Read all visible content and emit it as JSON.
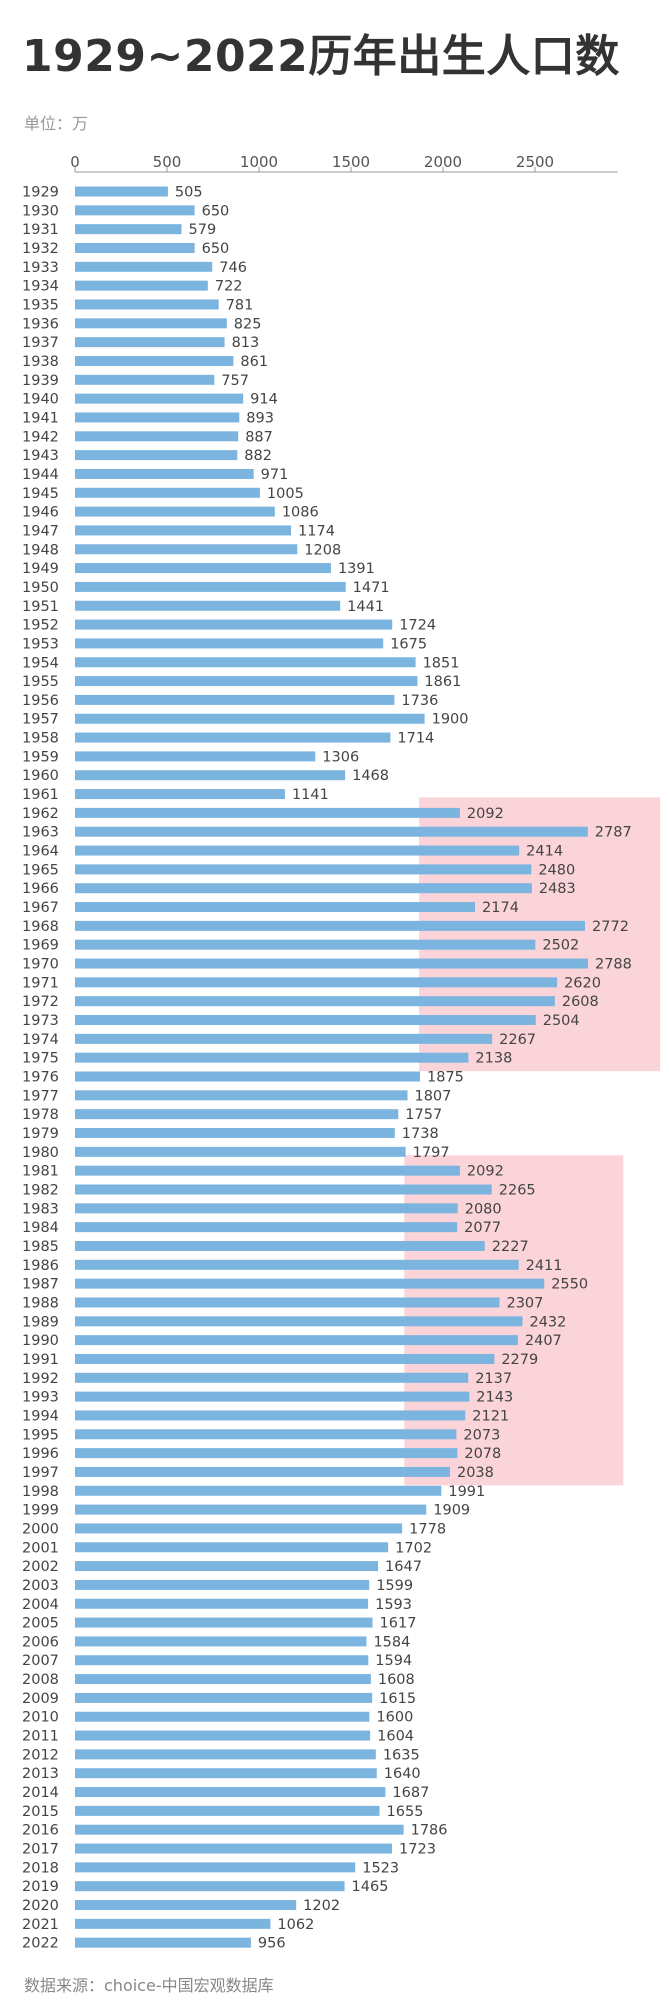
{
  "title": "1929~2022历年出生人口数",
  "unit_label": "单位：万",
  "source": "数据来源：choice-中国宏观数据库",
  "colors": {
    "bar": "#7cb4e0",
    "highlight": "#f8c6cc",
    "label": "#444444",
    "tick": "#555555",
    "axis": "#999999",
    "title": "#333333"
  },
  "chart_data": {
    "type": "bar",
    "orientation": "horizontal",
    "title": "1929~2022历年出生人口数",
    "xlabel": "",
    "ylabel": "",
    "unit": "万",
    "xlim": [
      0,
      2950
    ],
    "xticks": [
      0,
      500,
      1000,
      1500,
      2000,
      2500
    ],
    "grid": false,
    "legend": "none",
    "categories": [
      "1929",
      "1930",
      "1931",
      "1932",
      "1933",
      "1934",
      "1935",
      "1936",
      "1937",
      "1938",
      "1939",
      "1940",
      "1941",
      "1942",
      "1943",
      "1944",
      "1945",
      "1946",
      "1947",
      "1948",
      "1949",
      "1950",
      "1951",
      "1952",
      "1953",
      "1954",
      "1955",
      "1956",
      "1957",
      "1958",
      "1959",
      "1960",
      "1961",
      "1962",
      "1963",
      "1964",
      "1965",
      "1966",
      "1967",
      "1968",
      "1969",
      "1970",
      "1971",
      "1972",
      "1973",
      "1974",
      "1975",
      "1976",
      "1977",
      "1978",
      "1979",
      "1980",
      "1981",
      "1982",
      "1983",
      "1984",
      "1985",
      "1986",
      "1987",
      "1988",
      "1989",
      "1990",
      "1991",
      "1992",
      "1993",
      "1994",
      "1995",
      "1996",
      "1997",
      "1998",
      "1999",
      "2000",
      "2001",
      "2002",
      "2003",
      "2004",
      "2005",
      "2006",
      "2007",
      "2008",
      "2009",
      "2010",
      "2011",
      "2012",
      "2013",
      "2014",
      "2015",
      "2016",
      "2017",
      "2018",
      "2019",
      "2020",
      "2021",
      "2022"
    ],
    "values": [
      505,
      650,
      579,
      650,
      746,
      722,
      781,
      825,
      813,
      861,
      757,
      914,
      893,
      887,
      882,
      971,
      1005,
      1086,
      1174,
      1208,
      1391,
      1471,
      1441,
      1724,
      1675,
      1851,
      1861,
      1736,
      1900,
      1714,
      1306,
      1468,
      1141,
      2092,
      2787,
      2414,
      2480,
      2483,
      2174,
      2772,
      2502,
      2788,
      2620,
      2608,
      2504,
      2267,
      2138,
      1875,
      1807,
      1757,
      1738,
      1797,
      2092,
      2265,
      2080,
      2077,
      2227,
      2411,
      2550,
      2307,
      2432,
      2407,
      2279,
      2137,
      2143,
      2121,
      2073,
      2078,
      2038,
      1991,
      1909,
      1778,
      1702,
      1647,
      1599,
      1593,
      1617,
      1584,
      1594,
      1608,
      1615,
      1600,
      1604,
      1635,
      1640,
      1687,
      1655,
      1786,
      1723,
      1523,
      1465,
      1202,
      1062,
      956
    ],
    "highlight_ranges": [
      {
        "from": "1962",
        "to": "1975",
        "x_from": 1870,
        "x_to": 3180
      },
      {
        "from": "1981",
        "to": "1997",
        "x_from": 1790,
        "x_to": 2980
      }
    ]
  }
}
